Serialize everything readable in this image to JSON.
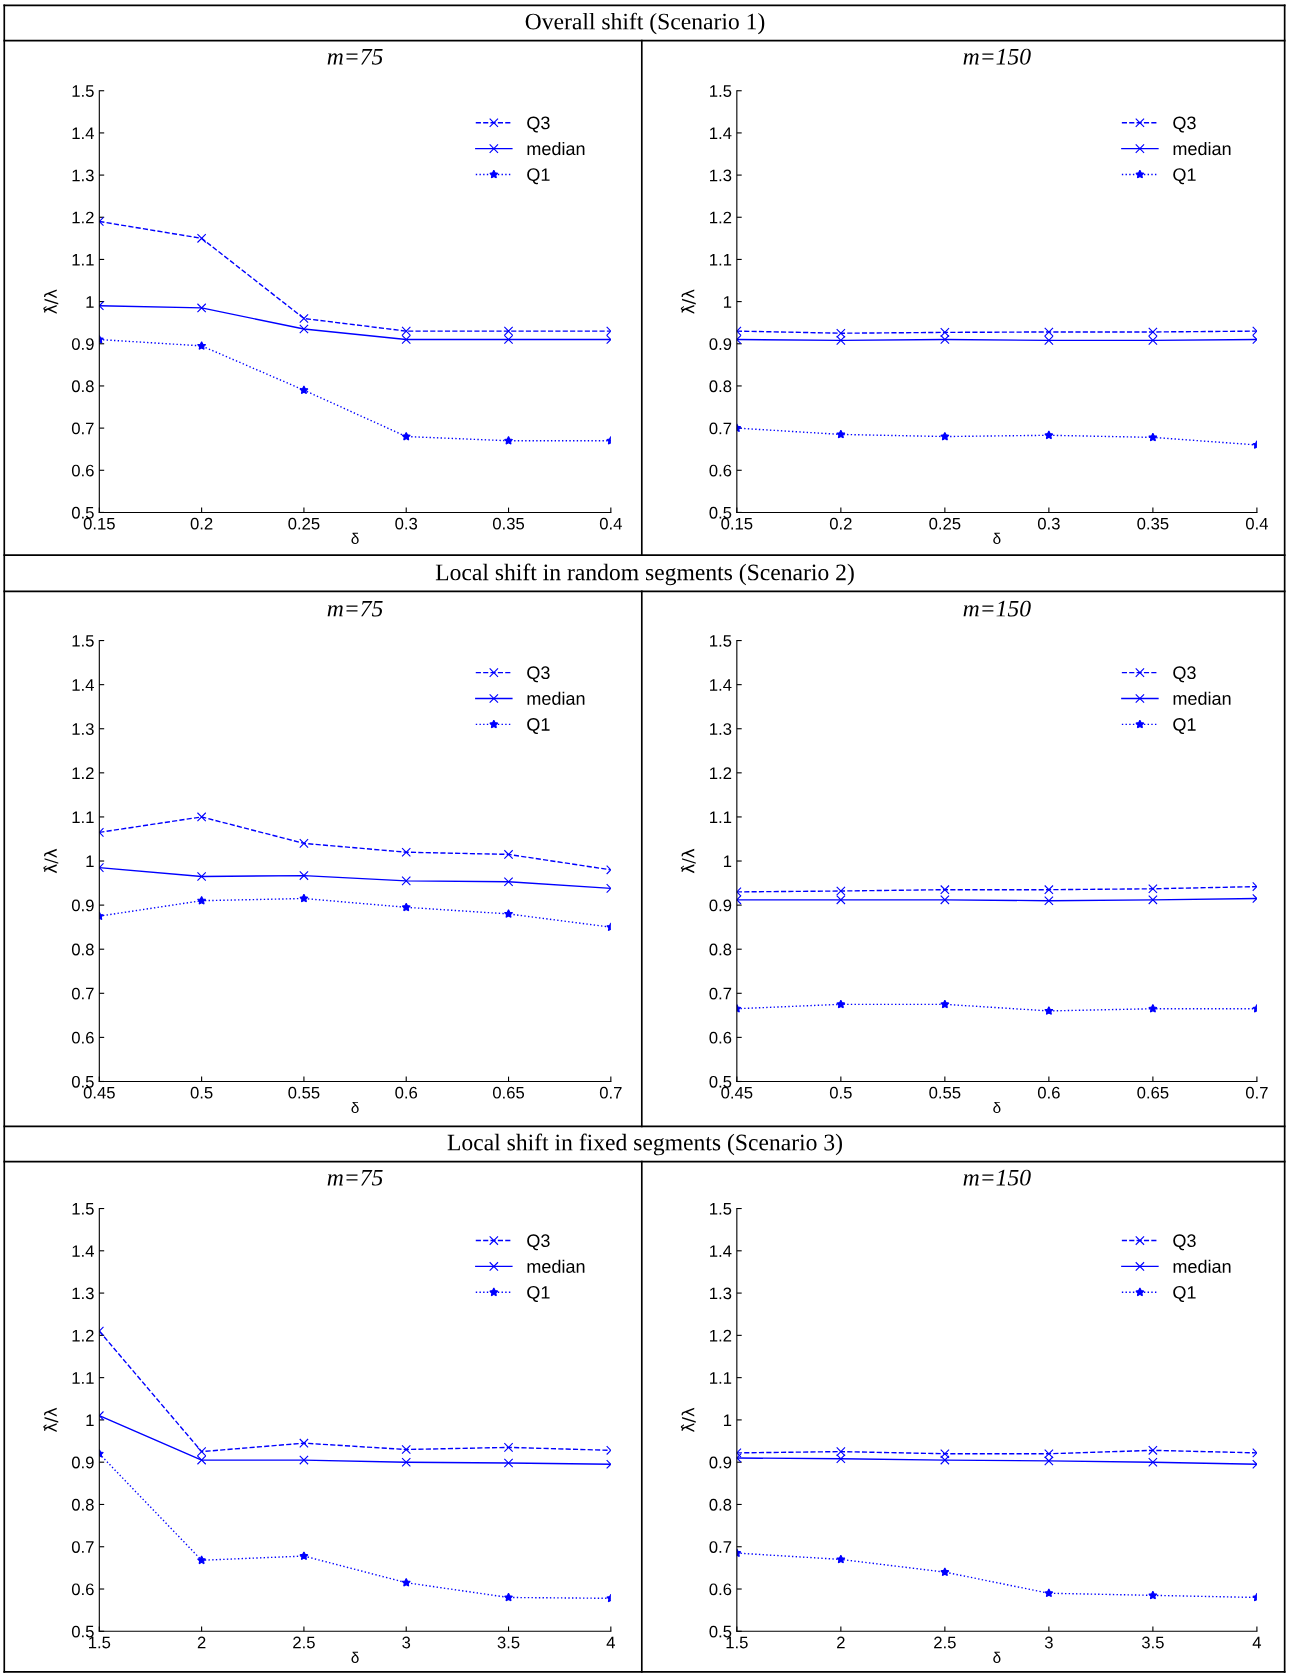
{
  "chart_data": [
    {
      "type": "line",
      "subtitle": "Overall shift (Scenario 1)",
      "title": "m=75",
      "xlabel": "δ",
      "ylabel": "λ̂/λ",
      "x": [
        0.15,
        0.2,
        0.25,
        0.3,
        0.35,
        0.4
      ],
      "xlim": [
        0.15,
        0.4
      ],
      "xticks": [
        0.15,
        0.2,
        0.25,
        0.3,
        0.35,
        0.4
      ],
      "ylim": [
        0.5,
        1.5
      ],
      "yticks": [
        0.5,
        0.6,
        0.7,
        0.8,
        0.9,
        1,
        1.1,
        1.2,
        1.3,
        1.4,
        1.5
      ],
      "legend": "top right",
      "grid": false,
      "series": [
        {
          "name": "Q3",
          "color": "#0000ff",
          "marker": "cross",
          "line_style": "dashed",
          "values": [
            1.19,
            1.15,
            0.96,
            0.93,
            0.93,
            0.93
          ]
        },
        {
          "name": "median",
          "color": "#0000ff",
          "marker": "cross",
          "line_style": "solid",
          "values": [
            0.99,
            0.985,
            0.935,
            0.91,
            0.91,
            0.91
          ]
        },
        {
          "name": "Q1",
          "color": "#0000ff",
          "marker": "star",
          "line_style": "dotted",
          "values": [
            0.91,
            0.895,
            0.79,
            0.68,
            0.67,
            0.67
          ]
        }
      ]
    },
    {
      "type": "line",
      "title": "m=150",
      "xlabel": "δ",
      "ylabel": "λ̂/λ",
      "x": [
        0.15,
        0.2,
        0.25,
        0.3,
        0.35,
        0.4
      ],
      "xlim": [
        0.15,
        0.4
      ],
      "xticks": [
        0.15,
        0.2,
        0.25,
        0.3,
        0.35,
        0.4
      ],
      "ylim": [
        0.5,
        1.5
      ],
      "yticks": [
        0.5,
        0.6,
        0.7,
        0.8,
        0.9,
        1,
        1.1,
        1.2,
        1.3,
        1.4,
        1.5
      ],
      "legend": "top right",
      "grid": false,
      "series": [
        {
          "name": "Q3",
          "color": "#0000ff",
          "marker": "cross",
          "line_style": "dashed",
          "values": [
            0.93,
            0.925,
            0.927,
            0.928,
            0.928,
            0.93
          ]
        },
        {
          "name": "median",
          "color": "#0000ff",
          "marker": "cross",
          "line_style": "solid",
          "values": [
            0.91,
            0.908,
            0.91,
            0.908,
            0.908,
            0.91
          ]
        },
        {
          "name": "Q1",
          "color": "#0000ff",
          "marker": "star",
          "line_style": "dotted",
          "values": [
            0.7,
            0.685,
            0.68,
            0.683,
            0.678,
            0.66
          ]
        }
      ]
    },
    {
      "type": "line",
      "subtitle": "Local shift in random segments (Scenario 2)",
      "title": "m=75",
      "xlabel": "δ",
      "ylabel": "λ̂/λ",
      "x": [
        0.45,
        0.5,
        0.55,
        0.6,
        0.65,
        0.7
      ],
      "xlim": [
        0.45,
        0.7
      ],
      "xticks": [
        0.45,
        0.5,
        0.55,
        0.6,
        0.65,
        0.7
      ],
      "ylim": [
        0.5,
        1.5
      ],
      "yticks": [
        0.5,
        0.6,
        0.7,
        0.8,
        0.9,
        1,
        1.1,
        1.2,
        1.3,
        1.4,
        1.5
      ],
      "legend": "top right",
      "grid": false,
      "series": [
        {
          "name": "Q3",
          "color": "#0000ff",
          "marker": "cross",
          "line_style": "dashed",
          "values": [
            1.065,
            1.1,
            1.04,
            1.02,
            1.015,
            0.98
          ]
        },
        {
          "name": "median",
          "color": "#0000ff",
          "marker": "cross",
          "line_style": "solid",
          "values": [
            0.985,
            0.965,
            0.967,
            0.955,
            0.953,
            0.938
          ]
        },
        {
          "name": "Q1",
          "color": "#0000ff",
          "marker": "star",
          "line_style": "dotted",
          "values": [
            0.875,
            0.91,
            0.915,
            0.895,
            0.88,
            0.85
          ]
        }
      ]
    },
    {
      "type": "line",
      "title": "m=150",
      "xlabel": "δ",
      "ylabel": "λ̂/λ",
      "x": [
        0.45,
        0.5,
        0.55,
        0.6,
        0.65,
        0.7
      ],
      "xlim": [
        0.45,
        0.7
      ],
      "xticks": [
        0.45,
        0.5,
        0.55,
        0.6,
        0.65,
        0.7
      ],
      "ylim": [
        0.5,
        1.5
      ],
      "yticks": [
        0.5,
        0.6,
        0.7,
        0.8,
        0.9,
        1,
        1.1,
        1.2,
        1.3,
        1.4,
        1.5
      ],
      "legend": "top right",
      "grid": false,
      "series": [
        {
          "name": "Q3",
          "color": "#0000ff",
          "marker": "cross",
          "line_style": "dashed",
          "values": [
            0.93,
            0.932,
            0.935,
            0.935,
            0.937,
            0.942
          ]
        },
        {
          "name": "median",
          "color": "#0000ff",
          "marker": "cross",
          "line_style": "solid",
          "values": [
            0.912,
            0.912,
            0.912,
            0.91,
            0.912,
            0.915
          ]
        },
        {
          "name": "Q1",
          "color": "#0000ff",
          "marker": "star",
          "line_style": "dotted",
          "values": [
            0.665,
            0.675,
            0.675,
            0.66,
            0.665,
            0.665
          ]
        }
      ]
    },
    {
      "type": "line",
      "subtitle": "Local shift in fixed segments (Scenario 3)",
      "title": "m=75",
      "xlabel": "δ",
      "ylabel": "λ̂/λ",
      "x": [
        1.5,
        2,
        2.5,
        3,
        3.5,
        4
      ],
      "xlim": [
        1.5,
        4
      ],
      "xticks": [
        1.5,
        2,
        2.5,
        3,
        3.5,
        4
      ],
      "ylim": [
        0.5,
        1.5
      ],
      "yticks": [
        0.5,
        0.6,
        0.7,
        0.8,
        0.9,
        1,
        1.1,
        1.2,
        1.3,
        1.4,
        1.5
      ],
      "legend": "top right",
      "grid": false,
      "series": [
        {
          "name": "Q3",
          "color": "#0000ff",
          "marker": "cross",
          "line_style": "dashed",
          "values": [
            1.21,
            0.925,
            0.945,
            0.93,
            0.935,
            0.928
          ]
        },
        {
          "name": "median",
          "color": "#0000ff",
          "marker": "cross",
          "line_style": "solid",
          "values": [
            1.01,
            0.905,
            0.905,
            0.9,
            0.898,
            0.895
          ]
        },
        {
          "name": "Q1",
          "color": "#0000ff",
          "marker": "star",
          "line_style": "dotted",
          "values": [
            0.92,
            0.668,
            0.678,
            0.615,
            0.58,
            0.578
          ]
        }
      ]
    },
    {
      "type": "line",
      "title": "m=150",
      "xlabel": "δ",
      "ylabel": "λ̂/λ",
      "x": [
        1.5,
        2,
        2.5,
        3,
        3.5,
        4
      ],
      "xlim": [
        1.5,
        4
      ],
      "xticks": [
        1.5,
        2,
        2.5,
        3,
        3.5,
        4
      ],
      "ylim": [
        0.5,
        1.5
      ],
      "yticks": [
        0.5,
        0.6,
        0.7,
        0.8,
        0.9,
        1,
        1.1,
        1.2,
        1.3,
        1.4,
        1.5
      ],
      "legend": "top right",
      "grid": false,
      "series": [
        {
          "name": "Q3",
          "color": "#0000ff",
          "marker": "cross",
          "line_style": "dashed",
          "values": [
            0.922,
            0.925,
            0.92,
            0.92,
            0.928,
            0.922
          ]
        },
        {
          "name": "median",
          "color": "#0000ff",
          "marker": "cross",
          "line_style": "solid",
          "values": [
            0.91,
            0.908,
            0.905,
            0.903,
            0.9,
            0.895
          ]
        },
        {
          "name": "Q1",
          "color": "#0000ff",
          "marker": "star",
          "line_style": "dotted",
          "values": [
            0.685,
            0.67,
            0.64,
            0.59,
            0.585,
            0.58
          ]
        }
      ]
    }
  ]
}
